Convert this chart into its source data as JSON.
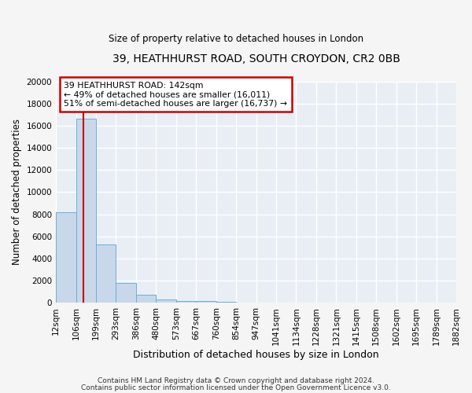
{
  "title": "39, HEATHHURST ROAD, SOUTH CROYDON, CR2 0BB",
  "subtitle": "Size of property relative to detached houses in London",
  "xlabel": "Distribution of detached houses by size in London",
  "ylabel": "Number of detached properties",
  "bin_labels": [
    "12sqm",
    "106sqm",
    "199sqm",
    "293sqm",
    "386sqm",
    "480sqm",
    "573sqm",
    "667sqm",
    "760sqm",
    "854sqm",
    "947sqm",
    "1041sqm",
    "1134sqm",
    "1228sqm",
    "1321sqm",
    "1415sqm",
    "1508sqm",
    "1602sqm",
    "1695sqm",
    "1789sqm",
    "1882sqm"
  ],
  "bar_values": [
    8200,
    16600,
    5300,
    1800,
    700,
    300,
    200,
    150,
    100,
    50,
    0,
    0,
    0,
    0,
    0,
    0,
    0,
    0,
    0,
    0
  ],
  "bar_color": "#c8d8ea",
  "bar_edge_color": "#6baed6",
  "red_line_x": 1.35,
  "annotation_line1": "39 HEATHHURST ROAD: 142sqm",
  "annotation_line2": "← 49% of detached houses are smaller (16,011)",
  "annotation_line3": "51% of semi-detached houses are larger (16,737) →",
  "annotation_box_color": "#ffffff",
  "annotation_box_edge": "#cc0000",
  "ylim": [
    0,
    20000
  ],
  "yticks": [
    0,
    2000,
    4000,
    6000,
    8000,
    10000,
    12000,
    14000,
    16000,
    18000,
    20000
  ],
  "footer1": "Contains HM Land Registry data © Crown copyright and database right 2024.",
  "footer2": "Contains public sector information licensed under the Open Government Licence v3.0.",
  "bg_color": "#f5f5f5",
  "plot_bg_color": "#e8eef4",
  "grid_color": "#ffffff"
}
